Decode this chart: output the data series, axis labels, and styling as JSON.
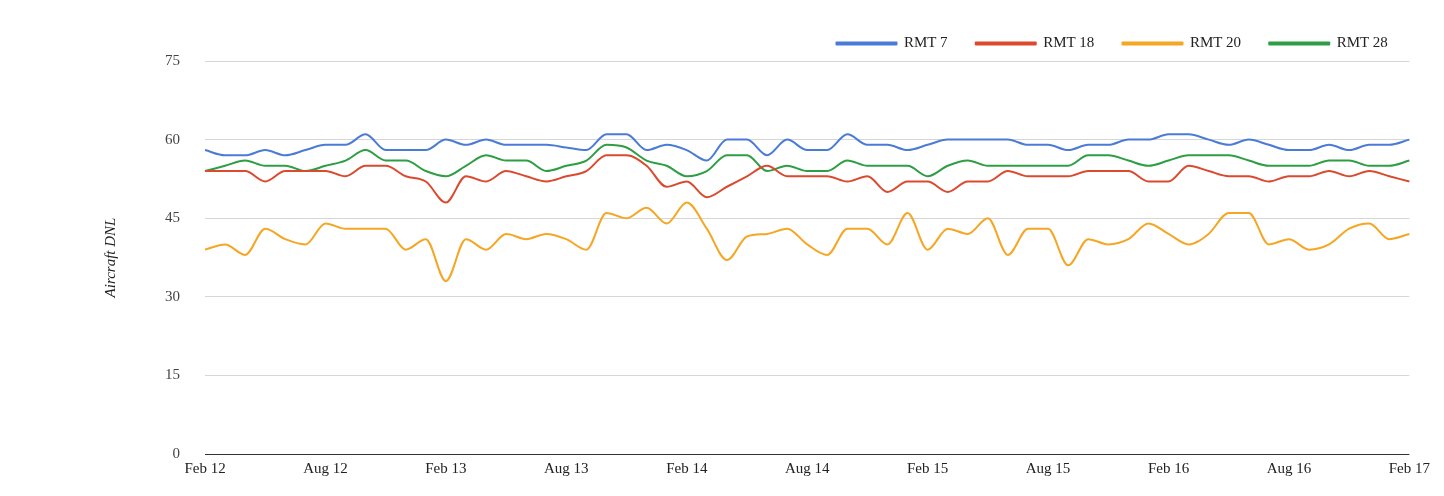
{
  "chart_data": {
    "type": "line",
    "ylabel": "Aircraft DNL",
    "categories": [
      "Feb 12",
      null,
      null,
      null,
      null,
      null,
      "Aug 12",
      null,
      null,
      null,
      null,
      null,
      "Feb 13",
      null,
      null,
      null,
      null,
      null,
      "Aug 13",
      null,
      null,
      null,
      null,
      null,
      "Feb 14",
      null,
      null,
      null,
      null,
      null,
      "Aug 14",
      null,
      null,
      null,
      null,
      null,
      "Feb 15",
      null,
      null,
      null,
      null,
      null,
      "Aug 15",
      null,
      null,
      null,
      null,
      null,
      "Feb 16",
      null,
      null,
      null,
      null,
      null,
      "Aug 16",
      null,
      null,
      null,
      null,
      null,
      "Feb 17"
    ],
    "series": [
      {
        "name": "RMT 7",
        "color": "#4a7bd6",
        "values": [
          58,
          57,
          57,
          58,
          57,
          58,
          59,
          59,
          61,
          58,
          58,
          58,
          60,
          59,
          60,
          59,
          59,
          59,
          58.5,
          58,
          61,
          61,
          58,
          59,
          58,
          56,
          60,
          60,
          57,
          60,
          58,
          58,
          61,
          59,
          59,
          58,
          59,
          60,
          60,
          60,
          60,
          59,
          59,
          58,
          59,
          59,
          60,
          60,
          61,
          61,
          60,
          59,
          60,
          59,
          58,
          58,
          59,
          58,
          59,
          59,
          60
        ]
      },
      {
        "name": "RMT 18",
        "color": "#db4a2e",
        "values": [
          54,
          54,
          54,
          52,
          54,
          54,
          54,
          53,
          55,
          55,
          53,
          52,
          48,
          53,
          52,
          54,
          53,
          52,
          53,
          54,
          57,
          57,
          55,
          51,
          52,
          49,
          51,
          53,
          55,
          53,
          53,
          53,
          52,
          53,
          50,
          52,
          52,
          50,
          52,
          52,
          54,
          53,
          53,
          53,
          54,
          54,
          54,
          52,
          52,
          55,
          54,
          53,
          53,
          52,
          53,
          53,
          54,
          53,
          54,
          53,
          52
        ]
      },
      {
        "name": "RMT 20",
        "color": "#f5a623",
        "values": [
          39,
          40,
          38,
          43,
          41,
          40,
          44,
          43,
          43,
          43,
          39,
          41,
          33,
          41,
          39,
          42,
          41,
          42,
          41,
          39,
          46,
          45,
          47,
          44,
          48,
          43,
          37,
          41.5,
          42,
          43,
          40,
          38,
          43,
          43,
          40,
          46,
          39,
          43,
          42,
          45,
          38,
          43,
          43,
          36,
          41,
          40,
          41,
          44,
          42,
          40,
          42,
          46,
          46,
          40,
          41,
          39,
          40,
          43,
          44,
          41,
          42
        ]
      },
      {
        "name": "RMT 28",
        "color": "#2e9e44",
        "values": [
          54,
          55,
          56,
          55,
          55,
          54,
          55,
          56,
          58,
          56,
          56,
          54,
          53,
          55,
          57,
          56,
          56,
          54,
          55,
          56,
          59,
          58.5,
          56,
          55,
          53,
          54,
          57,
          57,
          54,
          55,
          54,
          54,
          56,
          55,
          55,
          55,
          53,
          55,
          56,
          55,
          55,
          55,
          55,
          55,
          57,
          57,
          56,
          55,
          56,
          57,
          57,
          57,
          56,
          55,
          55,
          55,
          56,
          56,
          55,
          55,
          56
        ]
      }
    ],
    "ylim": [
      0,
      75
    ],
    "yticks": [
      0,
      15,
      30,
      45,
      60,
      75
    ],
    "grid": "y",
    "legend": "top right"
  }
}
